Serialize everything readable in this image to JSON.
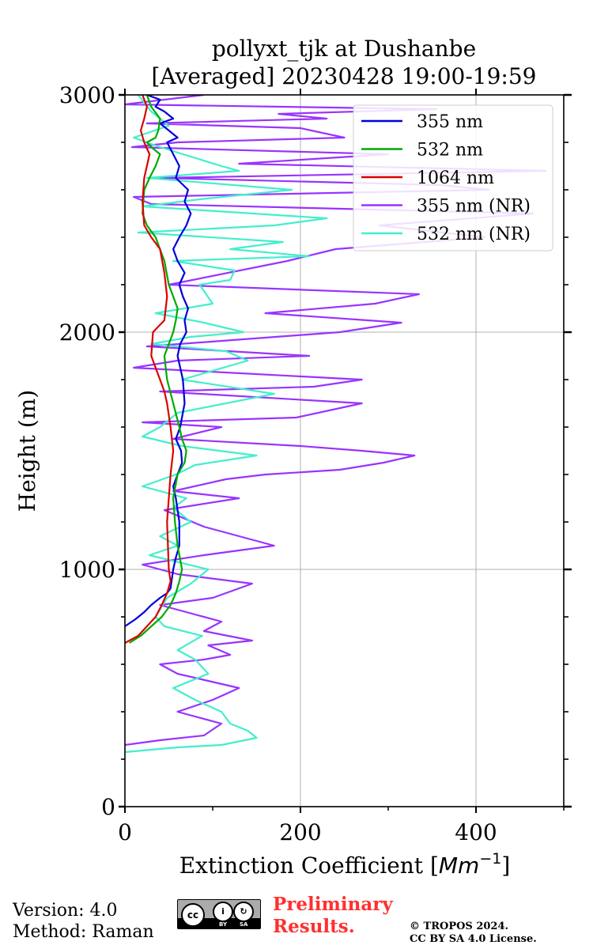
{
  "chart_data": {
    "type": "line",
    "title_line1": "pollyxt_tjk at Dushanbe",
    "title_line2": "[Averaged] 20230428 19:00-19:59",
    "xlabel": "Extinction Coefficient [",
    "xlabel_unit": "Mm",
    "xlabel_exp": "−1",
    "xlabel_close": "]",
    "ylabel": "Height (m)",
    "xlim": [
      0,
      500
    ],
    "ylim": [
      0,
      3000
    ],
    "xticks": [
      0,
      200,
      400
    ],
    "yticks": [
      0,
      1000,
      2000,
      3000
    ],
    "grid": true,
    "legend_position": "upper right",
    "series": [
      {
        "name": "355 nm",
        "color": "#0000dd",
        "x": [
          0,
          12,
          22,
          30,
          40,
          48,
          52,
          55,
          58,
          62,
          62,
          58,
          55,
          60,
          65,
          64,
          58,
          63,
          68,
          66,
          60,
          63,
          70,
          68,
          72,
          66,
          62,
          68,
          60,
          55,
          62,
          70,
          75,
          68,
          72,
          58,
          62,
          55,
          48,
          60,
          50,
          40,
          55,
          45,
          35,
          40,
          25
        ],
        "y": [
          760,
          790,
          820,
          850,
          880,
          900,
          920,
          1000,
          1050,
          1100,
          1200,
          1300,
          1350,
          1400,
          1450,
          1500,
          1550,
          1600,
          1700,
          1800,
          1900,
          1950,
          2000,
          2050,
          2100,
          2150,
          2200,
          2250,
          2300,
          2350,
          2400,
          2450,
          2500,
          2550,
          2600,
          2650,
          2700,
          2750,
          2800,
          2820,
          2850,
          2880,
          2900,
          2930,
          2950,
          2980,
          3000
        ]
      },
      {
        "name": "532 nm",
        "color": "#00aa00",
        "x": [
          5,
          18,
          30,
          42,
          52,
          58,
          62,
          65,
          60,
          57,
          55,
          60,
          68,
          70,
          65,
          62,
          55,
          48,
          45,
          50,
          55,
          58,
          60,
          55,
          50,
          45,
          35,
          25,
          20,
          22,
          28,
          35,
          40,
          30,
          25,
          35,
          38,
          40,
          30,
          25
        ],
        "y": [
          690,
          720,
          760,
          800,
          850,
          900,
          950,
          1000,
          1100,
          1200,
          1300,
          1400,
          1450,
          1500,
          1550,
          1600,
          1700,
          1800,
          1900,
          1950,
          2000,
          2050,
          2100,
          2150,
          2200,
          2300,
          2400,
          2450,
          2500,
          2600,
          2650,
          2700,
          2750,
          2780,
          2800,
          2820,
          2850,
          2900,
          2950,
          3000
        ]
      },
      {
        "name": "1064 nm",
        "color": "#dd0000",
        "x": [
          0,
          15,
          25,
          35,
          42,
          48,
          52,
          50,
          48,
          52,
          55,
          52,
          50,
          48,
          45,
          40,
          35,
          30,
          32,
          45,
          48,
          45,
          40,
          30,
          22,
          20,
          22,
          25,
          28,
          22,
          18,
          22,
          25,
          20
        ],
        "y": [
          690,
          720,
          760,
          800,
          850,
          900,
          950,
          1000,
          1200,
          1400,
          1500,
          1600,
          1650,
          1700,
          1750,
          1800,
          1850,
          1900,
          2000,
          2050,
          2150,
          2250,
          2350,
          2400,
          2450,
          2550,
          2650,
          2700,
          2750,
          2800,
          2850,
          2900,
          2950,
          3000
        ]
      },
      {
        "name": "355 nm (NR)",
        "color": "#9933ff",
        "x": [
          0,
          40,
          90,
          110,
          60,
          100,
          130,
          60,
          40,
          90,
          120,
          95,
          145,
          90,
          110,
          70,
          40,
          100,
          145,
          60,
          20,
          90,
          130,
          170,
          90,
          45,
          130,
          55,
          115,
          160,
          245,
          295,
          330,
          270,
          200,
          55,
          110,
          20,
          195,
          270,
          40,
          215,
          270,
          10,
          60,
          210,
          25,
          245,
          315,
          160,
          285,
          335,
          50,
          185,
          240,
          410,
          290,
          465,
          30,
          10,
          415,
          360,
          40,
          480,
          130,
          300,
          8,
          60,
          250,
          200,
          25,
          230,
          175,
          355,
          0,
          90
        ],
        "y": [
          260,
          280,
          300,
          350,
          400,
          450,
          500,
          560,
          600,
          620,
          640,
          680,
          700,
          740,
          780,
          820,
          850,
          880,
          940,
          980,
          1020,
          1060,
          1080,
          1100,
          1180,
          1250,
          1300,
          1330,
          1380,
          1400,
          1420,
          1450,
          1480,
          1500,
          1520,
          1550,
          1600,
          1620,
          1640,
          1700,
          1750,
          1770,
          1800,
          1850,
          1880,
          1900,
          1940,
          2000,
          2040,
          2080,
          2120,
          2160,
          2200,
          2300,
          2350,
          2400,
          2450,
          2500,
          2540,
          2570,
          2600,
          2620,
          2650,
          2680,
          2710,
          2750,
          2780,
          2800,
          2820,
          2860,
          2880,
          2900,
          2920,
          2940,
          2960,
          3000
        ]
      },
      {
        "name": "532 nm (NR)",
        "color": "#44eecc",
        "x": [
          0,
          60,
          110,
          150,
          140,
          120,
          110,
          80,
          55,
          95,
          80,
          60,
          88,
          45,
          35,
          48,
          75,
          95,
          28,
          60,
          40,
          75,
          55,
          70,
          20,
          58,
          80,
          150,
          65,
          20,
          40,
          60,
          170,
          65,
          140,
          115,
          30,
          75,
          135,
          90,
          35,
          100,
          85,
          120,
          125,
          55,
          210,
          120,
          180,
          15,
          170,
          230,
          20,
          85,
          190,
          25,
          130,
          110,
          40,
          10,
          50,
          30,
          15
        ],
        "y": [
          230,
          250,
          260,
          290,
          320,
          350,
          400,
          450,
          500,
          560,
          620,
          660,
          720,
          760,
          800,
          880,
          940,
          1000,
          1060,
          1100,
          1140,
          1200,
          1260,
          1300,
          1350,
          1400,
          1440,
          1480,
          1520,
          1560,
          1600,
          1660,
          1740,
          1800,
          1880,
          1920,
          1950,
          1980,
          2000,
          2040,
          2080,
          2120,
          2200,
          2220,
          2260,
          2300,
          2320,
          2350,
          2380,
          2420,
          2450,
          2480,
          2530,
          2560,
          2600,
          2650,
          2680,
          2700,
          2780,
          2820,
          2870,
          2930,
          3000
        ]
      }
    ]
  },
  "footer": {
    "version": "Version: 4.0",
    "method": "Method: Raman",
    "cc_by": "BY",
    "cc_sa": "SA",
    "preliminary_line1": "Preliminary",
    "preliminary_line2": "Results.",
    "copyright_line1": "© TROPOS 2024.",
    "copyright_line2": "CC BY SA 4.0 License."
  }
}
